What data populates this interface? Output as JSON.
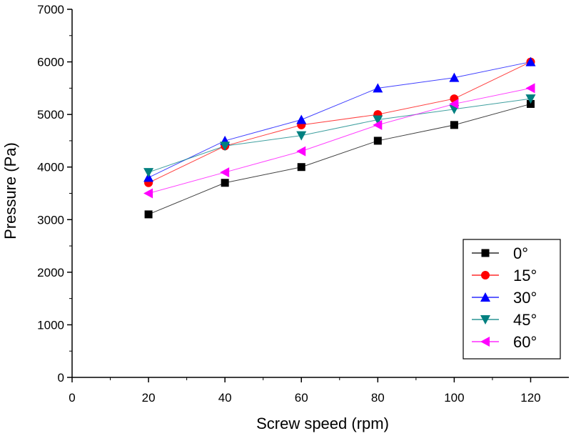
{
  "chart_data": {
    "type": "line",
    "title": "",
    "xlabel": "Screw speed (rpm)",
    "ylabel": "Pressure (Pa)",
    "xlim": [
      0,
      130
    ],
    "ylim": [
      0,
      7000
    ],
    "x_ticks": [
      0,
      20,
      40,
      60,
      80,
      100,
      120
    ],
    "y_ticks": [
      0,
      1000,
      2000,
      3000,
      4000,
      5000,
      6000,
      7000
    ],
    "x": [
      20,
      40,
      60,
      80,
      100,
      120
    ],
    "grid": false,
    "legend_position": "bottom-right",
    "series": [
      {
        "name": "0°",
        "color": "#000000",
        "marker": "square",
        "values": [
          3100,
          3700,
          4000,
          4500,
          4800,
          5200
        ]
      },
      {
        "name": "15°",
        "color": "#ff0000",
        "marker": "circle",
        "values": [
          3700,
          4400,
          4800,
          5000,
          5300,
          6000
        ]
      },
      {
        "name": "30°",
        "color": "#0000ff",
        "marker": "triangle-up",
        "values": [
          3800,
          4500,
          4900,
          5500,
          5700,
          6000
        ]
      },
      {
        "name": "45°",
        "color": "#008080",
        "marker": "triangle-down",
        "values": [
          3900,
          4400,
          4600,
          4900,
          5100,
          5300
        ]
      },
      {
        "name": "60°",
        "color": "#ff00ff",
        "marker": "triangle-left",
        "values": [
          3500,
          3900,
          4300,
          4800,
          5200,
          5500
        ]
      }
    ]
  }
}
